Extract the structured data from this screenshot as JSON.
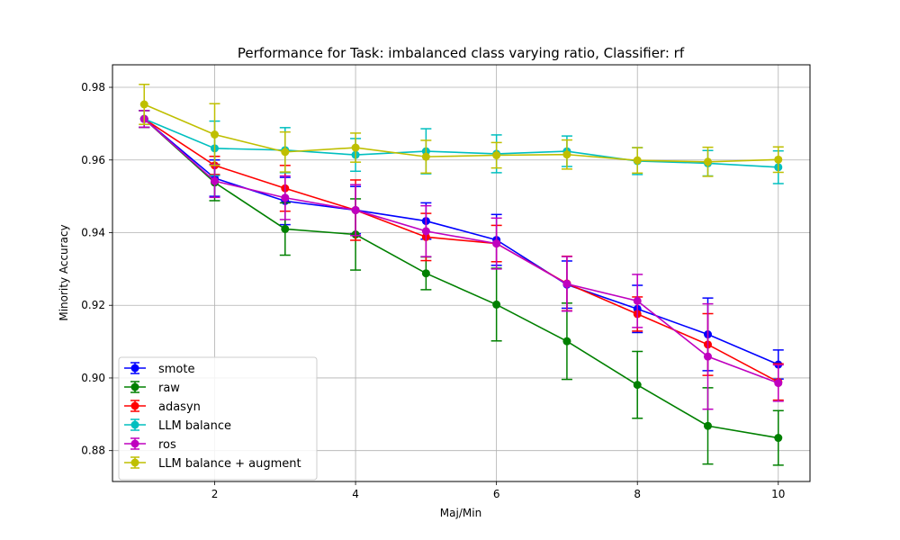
{
  "chart_data": {
    "type": "line",
    "title": "Performance for Task: imbalanced class varying ratio, Classifier: rf",
    "xlabel": "Maj/Min",
    "ylabel": "Minority Accuracy",
    "xlim": [
      0.55,
      10.45
    ],
    "ylim": [
      0.8715,
      0.9862
    ],
    "xticks": [
      2,
      4,
      6,
      8,
      10
    ],
    "yticks": [
      0.88,
      0.9,
      0.92,
      0.94,
      0.96,
      0.98
    ],
    "xtick_labels": [
      "2",
      "4",
      "6",
      "8",
      "10"
    ],
    "ytick_labels": [
      "0.88",
      "0.90",
      "0.92",
      "0.94",
      "0.96",
      "0.98"
    ],
    "grid": true,
    "legend_position": "lower-left",
    "x": [
      1,
      2,
      3,
      4,
      5,
      6,
      7,
      8,
      9,
      10
    ],
    "series": [
      {
        "name": "smote",
        "color": "#0000ff",
        "values": [
          0.9713,
          0.955,
          0.9487,
          0.9462,
          0.9432,
          0.938,
          0.9257,
          0.919,
          0.912,
          0.9037
        ],
        "errors": [
          0.0023,
          0.005,
          0.0065,
          0.0065,
          0.005,
          0.007,
          0.0065,
          0.0065,
          0.01,
          0.004
        ]
      },
      {
        "name": "raw",
        "color": "#008000",
        "values": [
          0.9713,
          0.9538,
          0.941,
          0.9395,
          0.9288,
          0.9202,
          0.9101,
          0.8981,
          0.8868,
          0.8835
        ],
        "errors": [
          0.0023,
          0.005,
          0.0072,
          0.0098,
          0.0045,
          0.01,
          0.0105,
          0.0092,
          0.0105,
          0.0075
        ]
      },
      {
        "name": "adasyn",
        "color": "#ff0000",
        "values": [
          0.9713,
          0.9585,
          0.9522,
          0.9462,
          0.9388,
          0.937,
          0.926,
          0.9176,
          0.9092,
          0.8989
        ],
        "errors": [
          0.0023,
          0.0025,
          0.0063,
          0.0083,
          0.0065,
          0.005,
          0.0075,
          0.0047,
          0.0085,
          0.005
        ]
      },
      {
        "name": "LLM balance",
        "color": "#00bfbf",
        "values": [
          0.9713,
          0.9632,
          0.9627,
          0.9614,
          0.9624,
          0.9617,
          0.9624,
          0.9597,
          0.9591,
          0.958
        ],
        "errors": [
          0.0023,
          0.0075,
          0.0062,
          0.0045,
          0.0062,
          0.0052,
          0.0042,
          0.0037,
          0.0035,
          0.0045
        ]
      },
      {
        "name": "ros",
        "color": "#bf00bf",
        "values": [
          0.9713,
          0.9542,
          0.9496,
          0.9462,
          0.9404,
          0.937,
          0.9259,
          0.9212,
          0.9059,
          0.8986
        ],
        "errors": [
          0.0023,
          0.0045,
          0.006,
          0.007,
          0.007,
          0.007,
          0.0075,
          0.0073,
          0.0145,
          0.005
        ]
      },
      {
        "name": "LLM balance + augment",
        "color": "#bfbf00",
        "values": [
          0.9753,
          0.967,
          0.9622,
          0.9634,
          0.9609,
          0.9613,
          0.9615,
          0.9599,
          0.9595,
          0.9601
        ],
        "errors": [
          0.0055,
          0.0085,
          0.0055,
          0.004,
          0.0045,
          0.0035,
          0.004,
          0.0035,
          0.004,
          0.0035
        ]
      }
    ]
  }
}
